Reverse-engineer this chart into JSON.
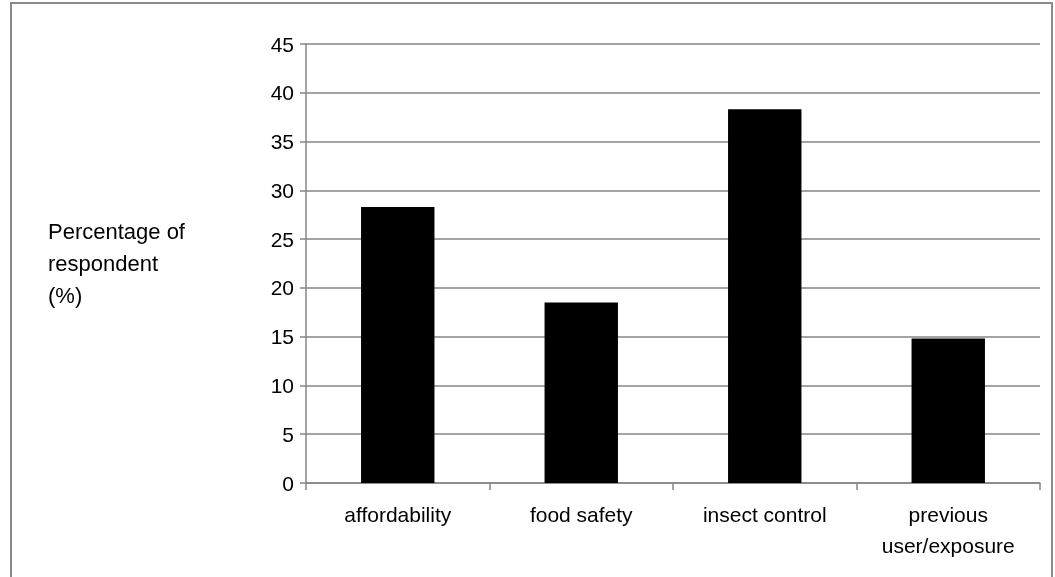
{
  "chart_data": {
    "type": "bar",
    "categories": [
      "affordability",
      "food safety",
      "insect control",
      "previous user/exposure"
    ],
    "values": [
      28.3,
      18.5,
      38.3,
      14.8
    ],
    "color": "#000000",
    "ylabel": "Percentage of respondent (%)",
    "ylim": [
      0,
      45
    ],
    "yticks": [
      0,
      5,
      10,
      15,
      20,
      25,
      30,
      35,
      40,
      45
    ],
    "grid": "y"
  }
}
